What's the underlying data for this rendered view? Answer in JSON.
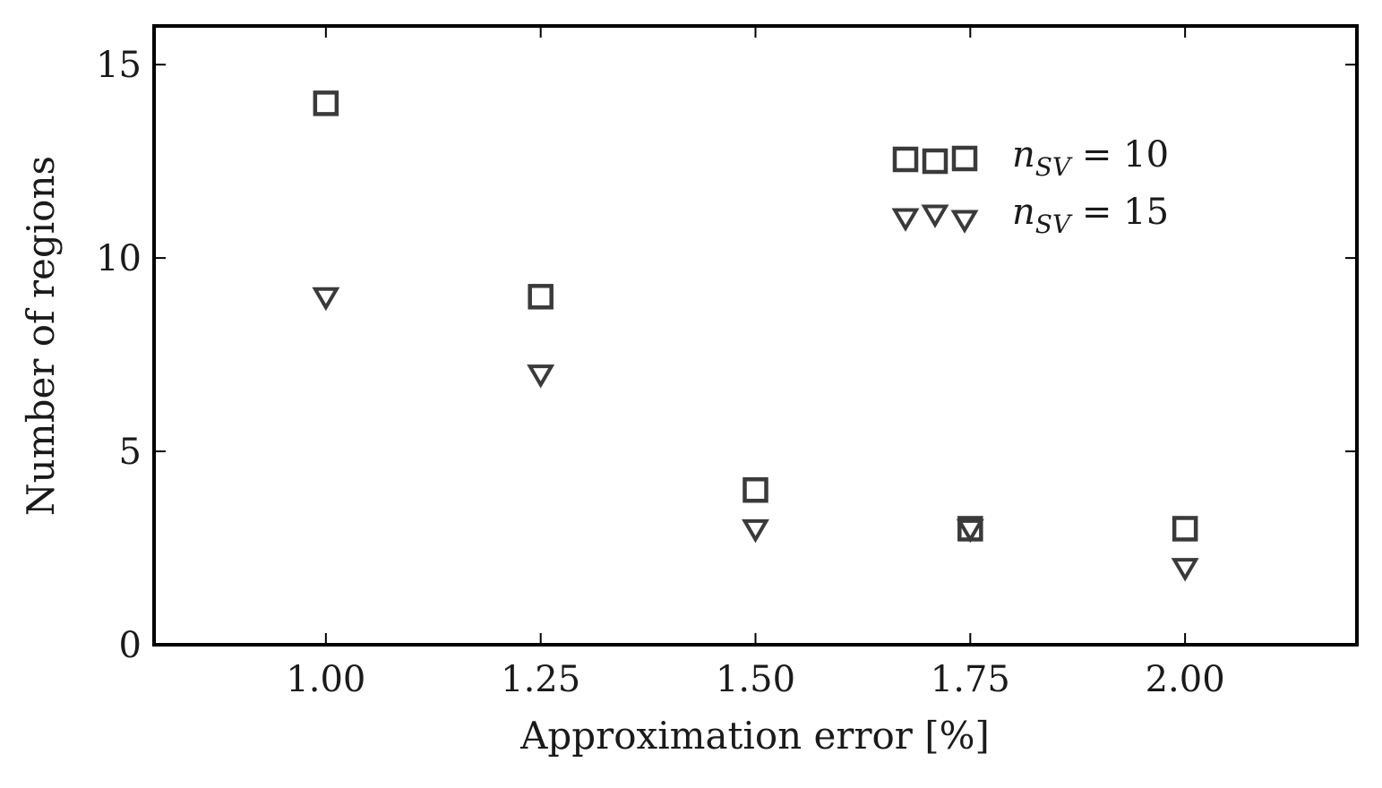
{
  "chart_data": {
    "type": "scatter",
    "title": "",
    "xlabel": "Approximation error [%]",
    "ylabel": "Number of regions",
    "xlim": [
      0.8,
      2.2
    ],
    "ylim": [
      0,
      16
    ],
    "xticks": [
      1.0,
      1.25,
      1.5,
      1.75,
      2.0
    ],
    "xtick_labels": [
      "1.00",
      "1.25",
      "1.50",
      "1.75",
      "2.00"
    ],
    "yticks": [
      0,
      5,
      10,
      15
    ],
    "ytick_labels": [
      "0",
      "5",
      "10",
      "15"
    ],
    "grid": false,
    "legend_position": "top-right",
    "series": [
      {
        "name": "n_SV = 10",
        "legend_main": "n",
        "legend_sub": "SV",
        "legend_rest": " = 10",
        "marker": "square",
        "x": [
          1.0,
          1.25,
          1.5,
          1.75,
          2.0
        ],
        "y": [
          14,
          9,
          4,
          3,
          3
        ]
      },
      {
        "name": "n_SV = 15",
        "legend_main": "n",
        "legend_sub": "SV",
        "legend_rest": " = 15",
        "marker": "triangle-down",
        "x": [
          1.0,
          1.25,
          1.5,
          1.75,
          2.0
        ],
        "y": [
          9,
          7,
          3,
          3,
          2
        ]
      }
    ],
    "colors": {
      "marker_stroke": "#3a3a3a",
      "axes": "#000000"
    }
  }
}
